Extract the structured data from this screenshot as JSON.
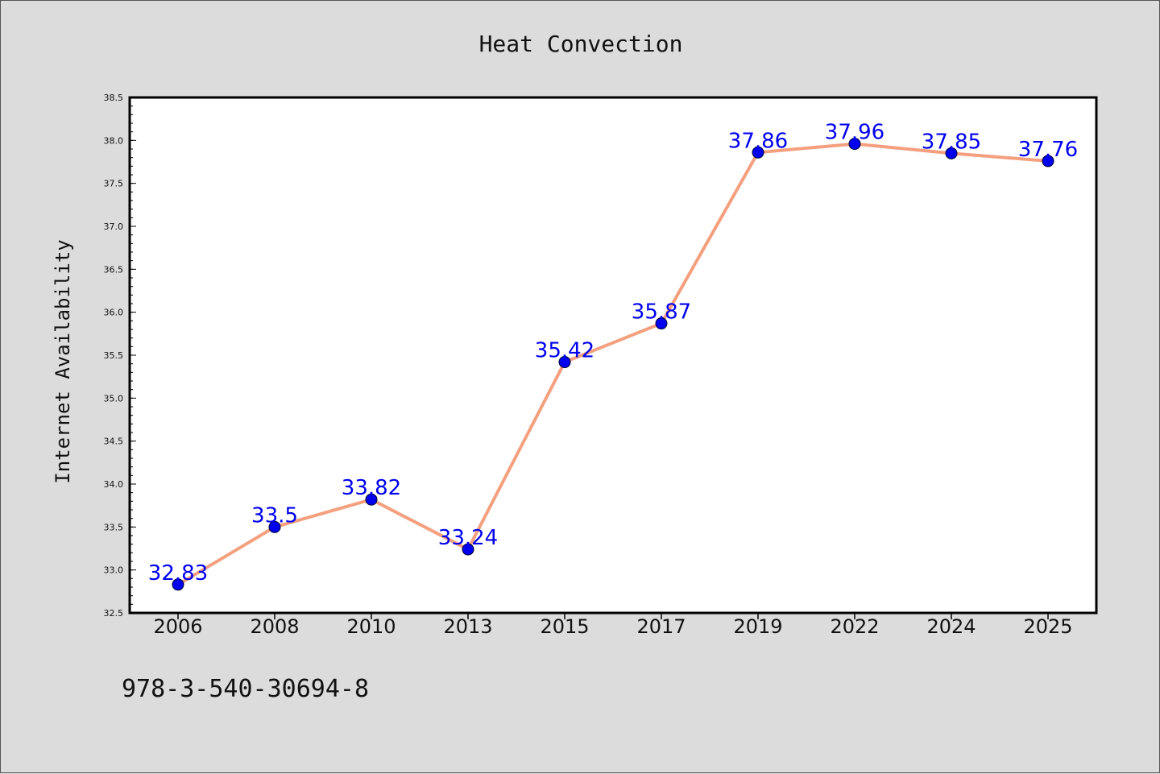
{
  "chart_data": {
    "type": "line",
    "title": "Heat Convection",
    "xlabel": "",
    "ylabel": "Internet Availability",
    "categories": [
      "2006",
      "2008",
      "2010",
      "2013",
      "2015",
      "2017",
      "2019",
      "2022",
      "2024",
      "2025"
    ],
    "series": [
      {
        "values": [
          32.83,
          33.5,
          33.82,
          33.24,
          35.42,
          35.87,
          37.86,
          37.96,
          37.85,
          37.76
        ],
        "labels": [
          "32.83",
          "33.5",
          "33.82",
          "33.24",
          "35.42",
          "35.87",
          "37.86",
          "37.96",
          "37.85",
          "37.76"
        ],
        "line_color": "#f4a07e",
        "marker_color": "#0000ee",
        "label_color": "#0000ee"
      }
    ],
    "ylim": [
      32.5,
      38.5
    ],
    "y_ticks": [
      "32.5",
      "33.0",
      "33.5",
      "34.0",
      "34.5",
      "35.0",
      "35.5",
      "36.0",
      "36.5",
      "37.0",
      "37.5",
      "38.0",
      "38.5"
    ],
    "grid": false,
    "legend": "none"
  },
  "footnote": "978-3-540-30694-8",
  "colors": {
    "background": "#dcdcdc",
    "plot_background": "#ffffff",
    "axis": "#000000"
  }
}
